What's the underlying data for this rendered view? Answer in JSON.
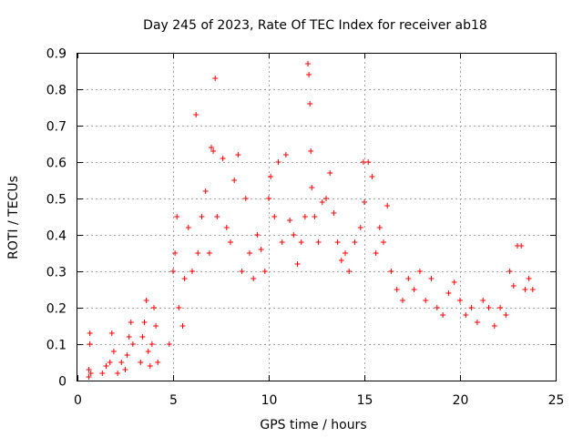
{
  "chart_data": {
    "type": "scatter",
    "title": "Day 245 of 2023, Rate Of TEC Index for receiver ab18",
    "xlabel": "GPS time / hours",
    "ylabel": "ROTI / TECUs",
    "xlim": [
      0,
      25
    ],
    "ylim": [
      0,
      0.9
    ],
    "xticks": [
      "0",
      "5",
      "10",
      "15",
      "20",
      "25"
    ],
    "yticks": [
      "0",
      "0.1",
      "0.2",
      "0.3",
      "0.4",
      "0.5",
      "0.6",
      "0.7",
      "0.8",
      "0.9"
    ],
    "grid": true,
    "marker": "plus",
    "color": "#ff0000",
    "series": [
      {
        "points": [
          [
            0.6,
            0.01
          ],
          [
            0.6,
            0.03
          ],
          [
            0.65,
            0.1
          ],
          [
            0.65,
            0.13
          ],
          [
            0.7,
            0.02
          ],
          [
            1.3,
            0.02
          ],
          [
            1.5,
            0.04
          ],
          [
            1.7,
            0.05
          ],
          [
            1.8,
            0.13
          ],
          [
            1.9,
            0.08
          ],
          [
            2.1,
            0.02
          ],
          [
            2.3,
            0.05
          ],
          [
            2.5,
            0.03
          ],
          [
            2.6,
            0.07
          ],
          [
            2.7,
            0.12
          ],
          [
            2.8,
            0.16
          ],
          [
            2.9,
            0.1
          ],
          [
            3.3,
            0.05
          ],
          [
            3.4,
            0.12
          ],
          [
            3.5,
            0.16
          ],
          [
            3.6,
            0.22
          ],
          [
            3.7,
            0.08
          ],
          [
            3.8,
            0.04
          ],
          [
            3.9,
            0.1
          ],
          [
            4.0,
            0.2
          ],
          [
            4.1,
            0.15
          ],
          [
            4.2,
            0.05
          ],
          [
            4.8,
            0.1
          ],
          [
            5.0,
            0.3
          ],
          [
            5.1,
            0.35
          ],
          [
            5.2,
            0.45
          ],
          [
            5.3,
            0.2
          ],
          [
            5.5,
            0.15
          ],
          [
            5.6,
            0.28
          ],
          [
            5.8,
            0.42
          ],
          [
            6.0,
            0.3
          ],
          [
            6.2,
            0.73
          ],
          [
            6.3,
            0.35
          ],
          [
            6.5,
            0.45
          ],
          [
            6.7,
            0.52
          ],
          [
            6.9,
            0.35
          ],
          [
            7.0,
            0.64
          ],
          [
            7.1,
            0.63
          ],
          [
            7.2,
            0.83
          ],
          [
            7.3,
            0.45
          ],
          [
            7.6,
            0.61
          ],
          [
            7.8,
            0.42
          ],
          [
            8.0,
            0.38
          ],
          [
            8.2,
            0.55
          ],
          [
            8.4,
            0.62
          ],
          [
            8.6,
            0.3
          ],
          [
            8.8,
            0.5
          ],
          [
            9.0,
            0.35
          ],
          [
            9.2,
            0.28
          ],
          [
            9.4,
            0.4
          ],
          [
            9.6,
            0.36
          ],
          [
            9.8,
            0.3
          ],
          [
            10.0,
            0.5
          ],
          [
            10.1,
            0.56
          ],
          [
            10.3,
            0.45
          ],
          [
            10.5,
            0.6
          ],
          [
            10.7,
            0.38
          ],
          [
            10.9,
            0.62
          ],
          [
            11.1,
            0.44
          ],
          [
            11.3,
            0.4
          ],
          [
            11.5,
            0.32
          ],
          [
            11.7,
            0.38
          ],
          [
            11.9,
            0.45
          ],
          [
            12.05,
            0.87
          ],
          [
            12.1,
            0.84
          ],
          [
            12.15,
            0.76
          ],
          [
            12.2,
            0.63
          ],
          [
            12.25,
            0.53
          ],
          [
            12.4,
            0.45
          ],
          [
            12.6,
            0.38
          ],
          [
            12.8,
            0.49
          ],
          [
            13.0,
            0.5
          ],
          [
            13.2,
            0.57
          ],
          [
            13.4,
            0.46
          ],
          [
            13.6,
            0.38
          ],
          [
            13.8,
            0.33
          ],
          [
            14.0,
            0.35
          ],
          [
            14.2,
            0.3
          ],
          [
            14.5,
            0.38
          ],
          [
            14.8,
            0.42
          ],
          [
            14.95,
            0.6
          ],
          [
            15.0,
            0.49
          ],
          [
            15.2,
            0.6
          ],
          [
            15.4,
            0.56
          ],
          [
            15.6,
            0.35
          ],
          [
            15.8,
            0.42
          ],
          [
            16.0,
            0.38
          ],
          [
            16.2,
            0.48
          ],
          [
            16.4,
            0.3
          ],
          [
            16.7,
            0.25
          ],
          [
            17.0,
            0.22
          ],
          [
            17.3,
            0.28
          ],
          [
            17.6,
            0.25
          ],
          [
            17.9,
            0.3
          ],
          [
            18.2,
            0.22
          ],
          [
            18.5,
            0.28
          ],
          [
            18.8,
            0.2
          ],
          [
            19.1,
            0.18
          ],
          [
            19.4,
            0.24
          ],
          [
            19.7,
            0.27
          ],
          [
            20.0,
            0.22
          ],
          [
            20.3,
            0.18
          ],
          [
            20.6,
            0.2
          ],
          [
            20.9,
            0.16
          ],
          [
            21.2,
            0.22
          ],
          [
            21.5,
            0.2
          ],
          [
            21.8,
            0.15
          ],
          [
            22.1,
            0.2
          ],
          [
            22.4,
            0.18
          ],
          [
            22.6,
            0.3
          ],
          [
            22.8,
            0.26
          ],
          [
            23.0,
            0.37
          ],
          [
            23.2,
            0.37
          ],
          [
            23.4,
            0.25
          ],
          [
            23.6,
            0.28
          ],
          [
            23.8,
            0.25
          ]
        ]
      }
    ]
  }
}
